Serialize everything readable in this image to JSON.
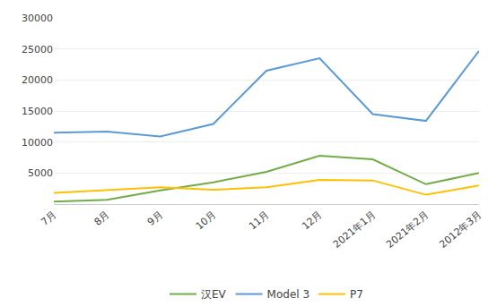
{
  "chart_data": {
    "type": "line",
    "categories": [
      "7月",
      "8月",
      "9月",
      "10月",
      "11月",
      "12月",
      "2021年1月",
      "2021年2月",
      "2012年3月"
    ],
    "series": [
      {
        "name": "汉EV",
        "color": "#70AD47",
        "values": [
          400,
          700,
          2200,
          3500,
          5200,
          7800,
          7200,
          3200,
          5000
        ]
      },
      {
        "name": "Model 3",
        "color": "#5B9BD5",
        "values": [
          11500,
          11700,
          10900,
          12900,
          21500,
          23500,
          14500,
          13400,
          24700
        ]
      },
      {
        "name": "P7",
        "color": "#FFC000",
        "values": [
          1800,
          2200,
          2700,
          2300,
          2700,
          3900,
          3800,
          1500,
          3000
        ]
      }
    ],
    "ylim": [
      0,
      30000
    ],
    "yticks": [
      5000,
      10000,
      15000,
      20000,
      25000,
      30000
    ],
    "grid": true,
    "legend": "bottom"
  }
}
